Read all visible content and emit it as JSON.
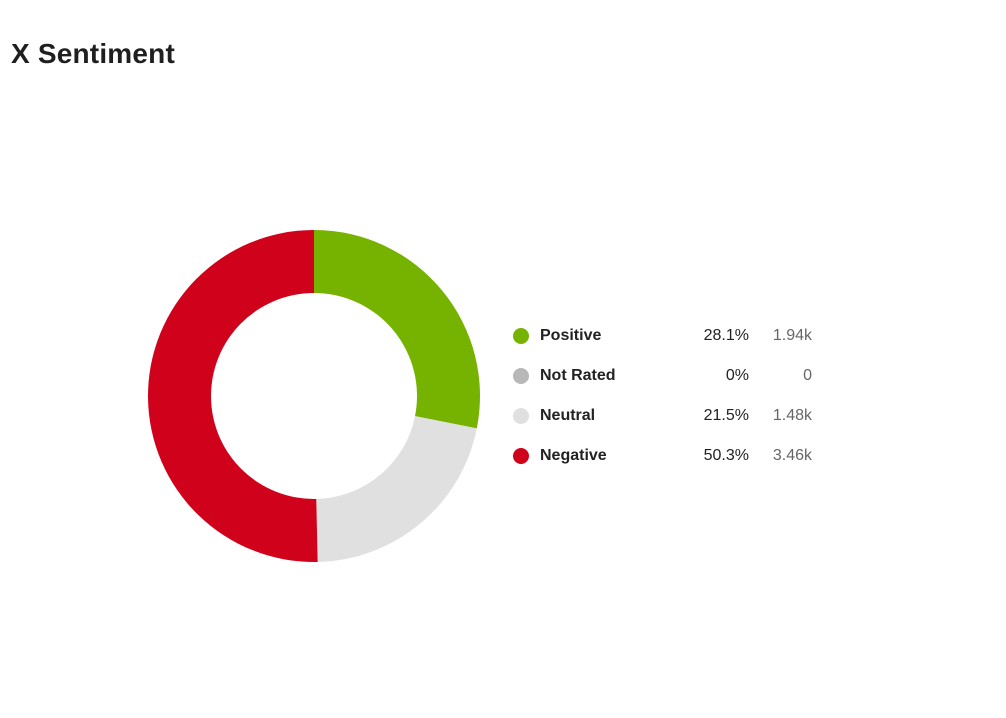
{
  "chart_data": {
    "type": "pie",
    "title": "X Sentiment",
    "donut": true,
    "start_angle_deg": 0,
    "legend_position": "right",
    "slices": [
      {
        "name": "Positive",
        "value": 28.1,
        "percent_label": "28.1%",
        "count_label": "1.94k",
        "color": "#76b300"
      },
      {
        "name": "Not Rated",
        "value": 0,
        "percent_label": "0%",
        "count_label": "0",
        "color": "#b8b8b8"
      },
      {
        "name": "Neutral",
        "value": 21.5,
        "percent_label": "21.5%",
        "count_label": "1.48k",
        "color": "#e0e0e0"
      },
      {
        "name": "Negative",
        "value": 50.3,
        "percent_label": "50.3%",
        "count_label": "3.46k",
        "color": "#d0021b"
      }
    ]
  }
}
